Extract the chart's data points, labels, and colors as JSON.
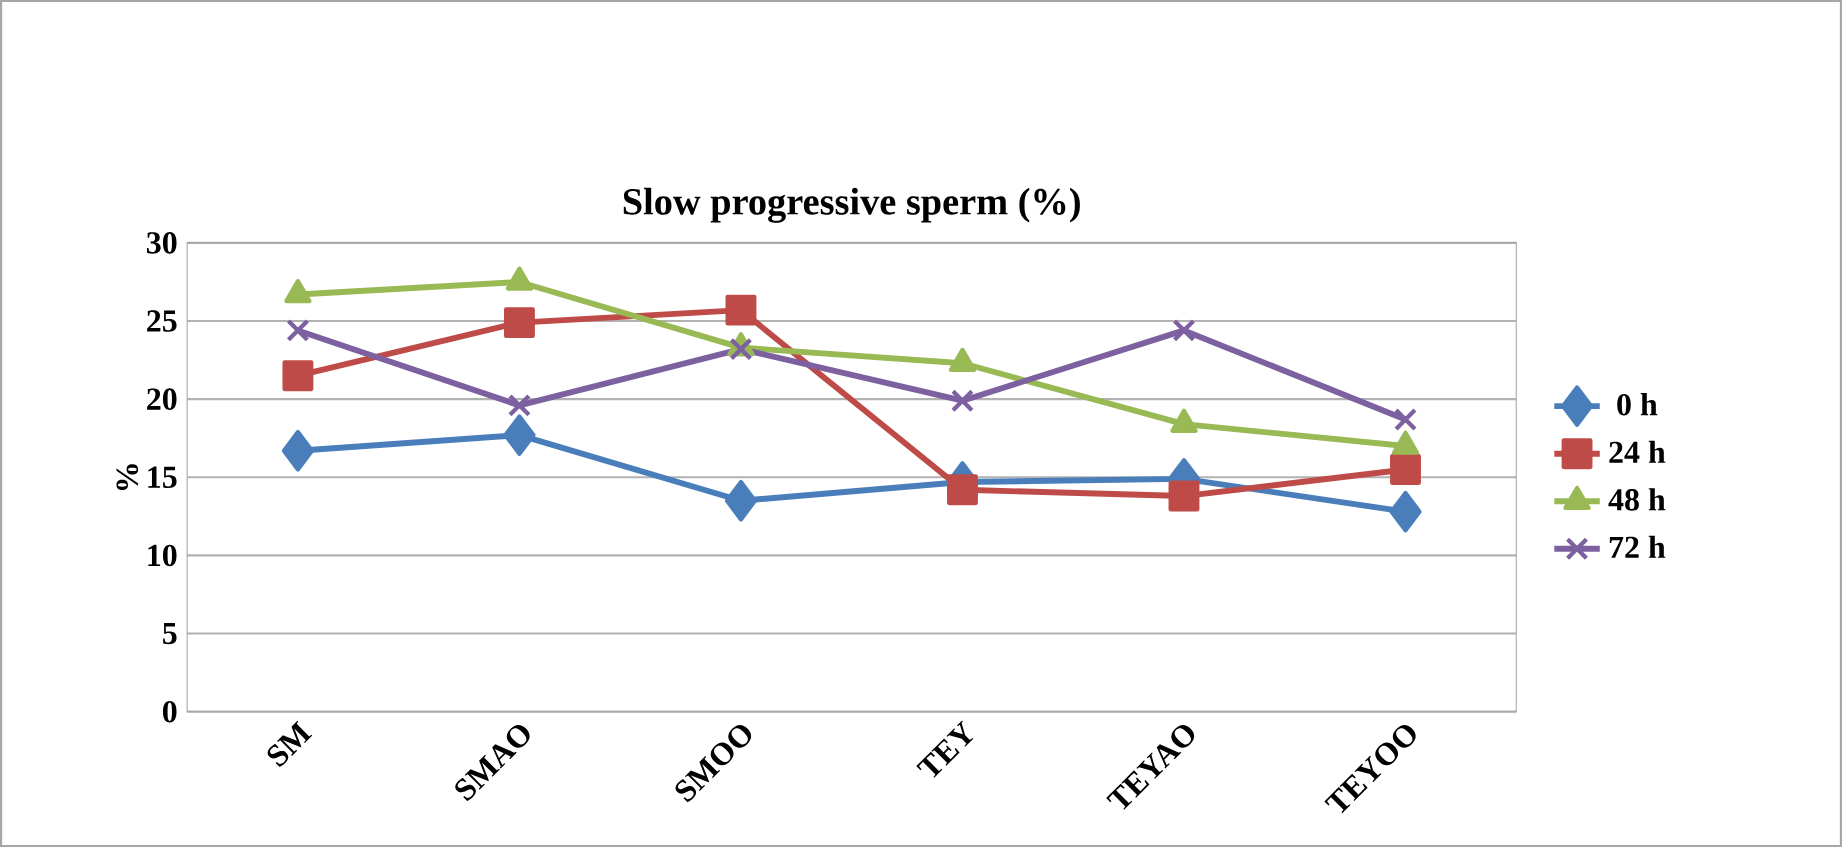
{
  "chart_data": {
    "type": "line",
    "title": "Slow progressive sperm (%)",
    "ylabel": "%",
    "categories": [
      "SM",
      "SMAO",
      "SMOO",
      "TEY",
      "TEYAO",
      "TEYOO"
    ],
    "series": [
      {
        "name": "0 h",
        "color": "#4a7ebb",
        "marker": "diamond",
        "values": [
          16.7,
          17.7,
          13.5,
          14.7,
          14.9,
          12.8
        ]
      },
      {
        "name": "24 h",
        "color": "#be4b48",
        "marker": "square",
        "values": [
          21.5,
          24.9,
          25.7,
          14.2,
          13.8,
          15.5
        ]
      },
      {
        "name": "48 h",
        "color": "#98b954",
        "marker": "triangle",
        "values": [
          26.7,
          27.5,
          23.3,
          22.3,
          18.4,
          17.0
        ]
      },
      {
        "name": "72 h",
        "color": "#7d60a0",
        "marker": "cross",
        "values": [
          24.4,
          19.6,
          23.2,
          19.9,
          24.4,
          18.7
        ]
      }
    ],
    "ylim": [
      0,
      30
    ],
    "yticks": [
      0,
      5,
      10,
      15,
      20,
      25,
      30
    ],
    "grid": "y",
    "legend": "right",
    "line_style": "solid"
  }
}
